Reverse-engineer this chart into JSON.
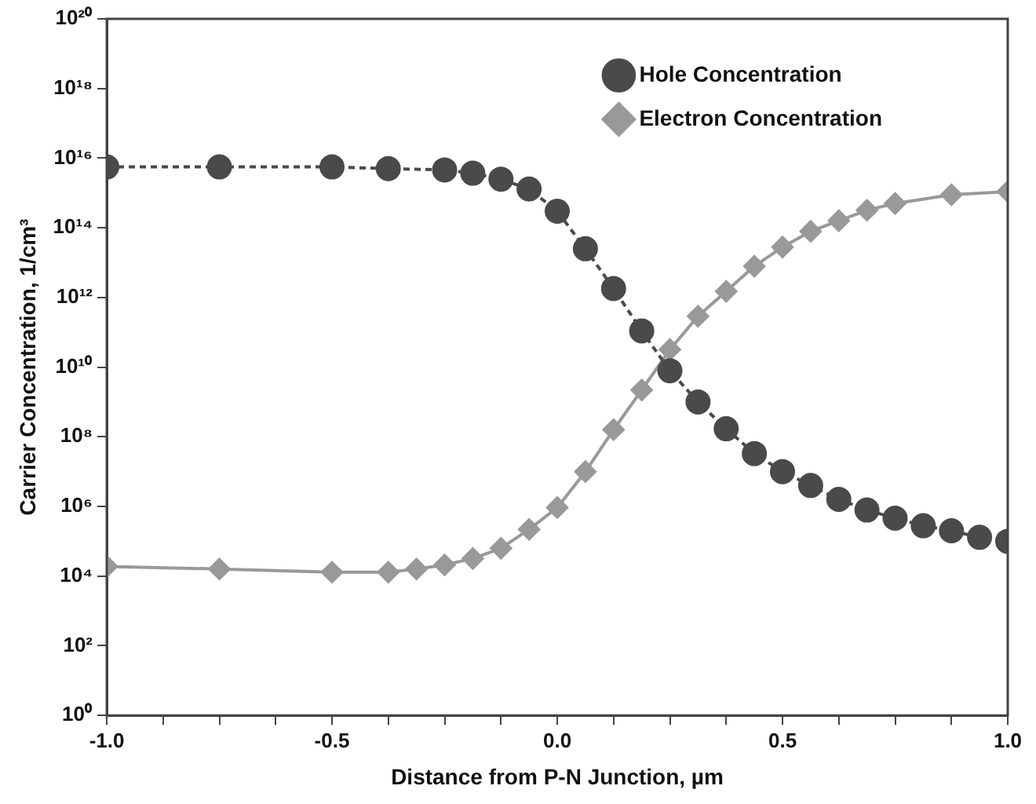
{
  "chart_data": {
    "type": "line",
    "xlabel": "Distance from P-N Junction, µm",
    "ylabel": "Carrier Concentration, 1/cm³",
    "log": "y",
    "legend": "top right",
    "grid": false,
    "xlim": [
      -1,
      1
    ],
    "xticks": [
      {
        "value": -1,
        "label": "-1.0"
      },
      {
        "value": -0.875,
        "label": null
      },
      {
        "value": -0.75,
        "label": null
      },
      {
        "value": -0.625,
        "label": null
      },
      {
        "value": -0.5,
        "label": "-0.5"
      },
      {
        "value": -0.375,
        "label": null
      },
      {
        "value": -0.25,
        "label": null
      },
      {
        "value": -0.125,
        "label": null
      },
      {
        "value": 0,
        "label": "0.0"
      },
      {
        "value": 0.125,
        "label": null
      },
      {
        "value": 0.25,
        "label": null
      },
      {
        "value": 0.375,
        "label": null
      },
      {
        "value": 0.5,
        "label": "0.5"
      },
      {
        "value": 0.625,
        "label": null
      },
      {
        "value": 0.75,
        "label": null
      },
      {
        "value": 0.875,
        "label": null
      },
      {
        "value": 1,
        "label": "1.0"
      }
    ],
    "ylim": [
      1,
      1e+20
    ],
    "yticks": [
      {
        "value": 1,
        "label": "10⁰"
      },
      {
        "value": 100,
        "label": "10²"
      },
      {
        "value": 10000,
        "label": "10⁴"
      },
      {
        "value": 1000000,
        "label": "10⁶"
      },
      {
        "value": 100000000,
        "label": "10⁸"
      },
      {
        "value": 10000000000,
        "label": "10¹⁰"
      },
      {
        "value": 1000000000000,
        "label": "10¹²"
      },
      {
        "value": 100000000000000,
        "label": "10¹⁴"
      },
      {
        "value": 10000000000000000,
        "label": "10¹⁶"
      },
      {
        "value": 1000000000000000000,
        "label": "10¹⁸"
      },
      {
        "value": 100000000000000000000,
        "label": "10²⁰"
      }
    ],
    "series": [
      {
        "name": "Hole Concentration",
        "color": "#4a4a4a",
        "marker": "circle",
        "line_style": "dashed",
        "x": [
          -1,
          -0.75,
          -0.5,
          -0.375,
          -0.25,
          -0.1875,
          -0.125,
          -0.0625,
          0,
          0.0625,
          0.125,
          0.1875,
          0.25,
          0.3125,
          0.375,
          0.4375,
          0.5,
          0.5625,
          0.625,
          0.6875,
          0.75,
          0.8125,
          0.875,
          0.9375,
          1
        ],
        "values": [
          5600000000000000.0,
          5600000000000000.0,
          5600000000000000.0,
          5000000000000000.0,
          4600000000000000.0,
          3700000000000000.0,
          2500000000000000.0,
          1300000000000000.0,
          300000000000000.0,
          25000000000000.0,
          1800000000000.0,
          110000000000.0,
          7900000000.0,
          1000000000.0,
          170000000.0,
          33000000.0,
          10000000.0,
          4000000.0,
          1600000.0,
          790000.0,
          460000.0,
          280000.0,
          200000.0,
          130000.0,
          100000.0
        ]
      },
      {
        "name": "Electron Concentration",
        "color": "#999999",
        "marker": "diamond",
        "line_style": "solid",
        "x": [
          -1,
          -0.75,
          -0.5,
          -0.375,
          -0.3125,
          -0.25,
          -0.1875,
          -0.125,
          -0.0625,
          0,
          0.0625,
          0.125,
          0.1875,
          0.25,
          0.3125,
          0.375,
          0.4375,
          0.5,
          0.5625,
          0.625,
          0.6875,
          0.75,
          0.875,
          1
        ],
        "values": [
          19000.0,
          16000.0,
          13000.0,
          13000.0,
          16000.0,
          21000.0,
          32000.0,
          63000.0,
          220000.0,
          930000.0,
          10000000.0,
          160000000.0,
          2200000000.0,
          32000000000.0,
          290000000000.0,
          1500000000000.0,
          7900000000000.0,
          28000000000000.0,
          79000000000000.0,
          160000000000000.0,
          320000000000000.0,
          500000000000000.0,
          890000000000000.0,
          1100000000000000.0
        ]
      }
    ]
  }
}
